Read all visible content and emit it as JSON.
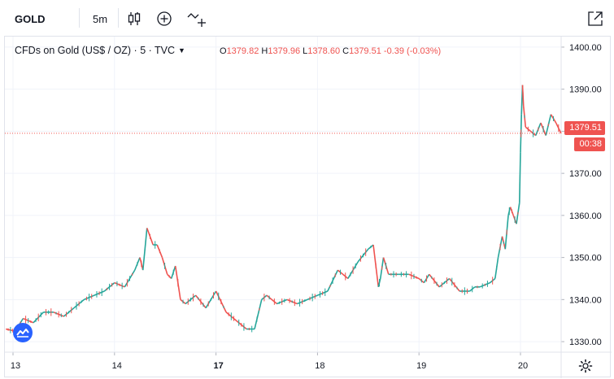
{
  "toolbar": {
    "symbol": "GOLD",
    "interval": "5m",
    "icons": [
      "candles-icon",
      "add-compare-icon",
      "indicators-icon",
      "fullscreen-icon"
    ]
  },
  "legend": {
    "title": "CFDs on Gold (US$ / OZ) · 5 · TVC",
    "open_label": "O",
    "open": "1379.82",
    "high_label": "H",
    "high": "1379.96",
    "low_label": "L",
    "low": "1378.60",
    "close_label": "C",
    "close": "1379.51",
    "change": "-0.39 (-0.03%)"
  },
  "price_tag": {
    "price": "1379.51",
    "countdown": "00:38"
  },
  "colors": {
    "up": "#26a69a",
    "down": "#ef5350",
    "grid": "#f0f3fa",
    "axis_text": "#131722",
    "watermark": "#2962ff"
  },
  "chart_data": {
    "type": "line",
    "title": "CFDs on Gold (US$ / OZ) · 5 · TVC",
    "xlabel": "",
    "ylabel": "",
    "ylim": [
      1327.5,
      1402.5
    ],
    "y_ticks": [
      "1330.00",
      "1340.00",
      "1350.00",
      "1360.00",
      "1370.00",
      "1380.00",
      "1390.00",
      "1400.00"
    ],
    "x_ticks": [
      {
        "label": "13",
        "bold": false,
        "x": 0.0
      },
      {
        "label": "14",
        "bold": false,
        "x": 1.0
      },
      {
        "label": "17",
        "bold": true,
        "x": 2.0
      },
      {
        "label": "18",
        "bold": false,
        "x": 3.0
      },
      {
        "label": "19",
        "bold": false,
        "x": 4.0
      },
      {
        "label": "20",
        "bold": false,
        "x": 5.0
      }
    ],
    "grid": true,
    "last_price": 1379.51,
    "series": [
      {
        "x": [
          -0.07,
          0.02,
          0.1,
          0.2,
          0.3,
          0.4,
          0.5,
          0.6,
          0.7,
          0.8,
          0.9,
          1.0,
          1.1,
          1.2,
          1.25,
          1.28,
          1.32,
          1.38,
          1.42,
          1.47,
          1.52,
          1.56,
          1.6,
          1.65,
          1.7,
          1.8,
          1.9,
          2.0,
          2.1,
          2.2,
          2.3,
          2.38,
          2.45,
          2.5,
          2.55,
          2.6,
          2.7,
          2.8,
          2.9,
          3.0,
          3.1,
          3.2,
          3.25,
          3.3,
          3.4,
          3.5,
          3.55,
          3.6,
          3.62,
          3.65,
          3.7,
          3.8,
          3.9,
          4.0,
          4.05,
          4.1,
          4.2,
          4.3,
          4.4,
          4.5,
          4.55,
          4.6,
          4.7,
          4.75,
          4.78,
          4.82,
          4.85,
          4.88,
          4.9,
          4.93,
          4.96,
          4.99,
          5.0,
          5.01,
          5.02,
          5.03,
          5.05,
          5.1,
          5.15,
          5.2,
          5.25,
          5.3,
          5.35,
          5.4
        ],
        "y": [
          1333,
          1332.5,
          1335.5,
          1334.5,
          1337,
          1337,
          1336,
          1338,
          1340,
          1341,
          1342,
          1344,
          1343,
          1347,
          1350,
          1347,
          1357,
          1353,
          1353,
          1350,
          1346,
          1345,
          1348,
          1340,
          1339,
          1341,
          1338,
          1342,
          1337,
          1335,
          1333,
          1333,
          1340,
          1341,
          1340,
          1339,
          1340,
          1339,
          1340,
          1341,
          1342,
          1347,
          1346,
          1345,
          1349,
          1352,
          1353,
          1343,
          1345,
          1350,
          1346,
          1346,
          1346,
          1345,
          1344,
          1346,
          1343,
          1345,
          1342,
          1342,
          1343,
          1343,
          1344,
          1345,
          1350,
          1355,
          1352,
          1360,
          1362,
          1360,
          1358,
          1363,
          1375,
          1384,
          1391,
          1386,
          1381,
          1380,
          1379,
          1382,
          1379,
          1384,
          1382,
          1379.5
        ]
      }
    ]
  }
}
